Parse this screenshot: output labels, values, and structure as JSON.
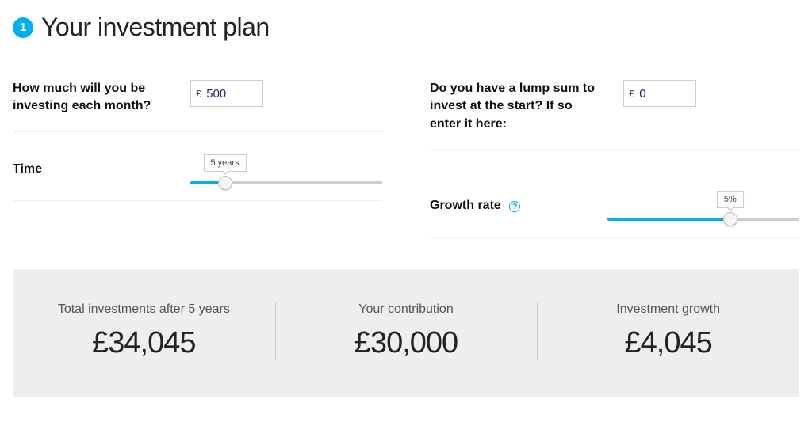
{
  "header": {
    "step_number": "1",
    "title": "Your investment plan"
  },
  "fields": {
    "monthly": {
      "label": "How much will you be investing each month?",
      "currency": "£",
      "value": "500"
    },
    "lump": {
      "label": "Do you have a lump sum to invest at the start? If so enter it here:",
      "currency": "£",
      "value": "0"
    }
  },
  "sliders": {
    "time": {
      "label": "Time",
      "tooltip": "5 years",
      "fill_pct": 18,
      "track_color": "#cccccc",
      "fill_color": "#00AEEF"
    },
    "growth": {
      "label": "Growth rate",
      "tooltip": "5%",
      "fill_pct": 64,
      "track_color": "#cccccc",
      "fill_color": "#00AEEF",
      "help_icon": "?"
    }
  },
  "results": {
    "total": {
      "label": "Total investments after 5 years",
      "value": "£34,045"
    },
    "contribution": {
      "label": "Your contribution",
      "value": "£30,000"
    },
    "growth": {
      "label": "Investment growth",
      "value": "£4,045"
    },
    "background_color": "#eeeeee"
  },
  "colors": {
    "accent": "#00AEEF",
    "text": "#111111",
    "muted": "#555555",
    "border": "#cccccc"
  }
}
